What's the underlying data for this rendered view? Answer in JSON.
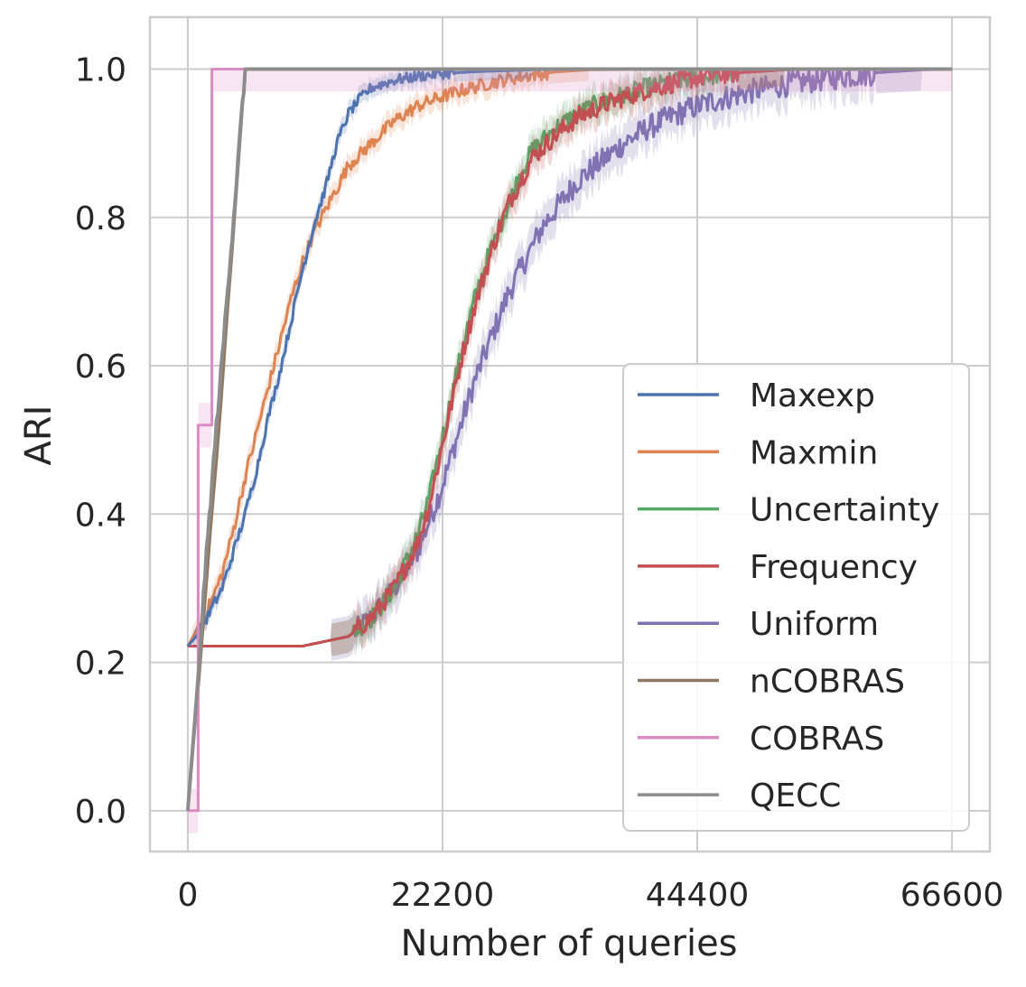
{
  "chart_data": {
    "type": "line",
    "title": "",
    "xlabel": "Number of queries",
    "ylabel": "ARI",
    "xlim": [
      -3300,
      69900
    ],
    "ylim": [
      -0.055,
      1.07
    ],
    "xticks": [
      0,
      22200,
      44400,
      66600
    ],
    "xtick_labels": [
      "0",
      "22200",
      "44400",
      "66600"
    ],
    "yticks": [
      0.0,
      0.2,
      0.4,
      0.6,
      0.8,
      1.0
    ],
    "ytick_labels": [
      "0.0",
      "0.2",
      "0.4",
      "0.6",
      "0.8",
      "1.0"
    ],
    "grid": true,
    "legend_position": "lower-right",
    "series": [
      {
        "name": "Maxexp",
        "color": "#4c72b0",
        "band": 0.012,
        "x": [
          0,
          1000,
          2000,
          3000,
          4000,
          5000,
          6000,
          7000,
          8000,
          9000,
          10000,
          11000,
          12000,
          13000,
          14000,
          15000,
          16000,
          18000,
          20000,
          22000,
          26000,
          30000,
          34000,
          40000,
          50000,
          66600
        ],
        "y": [
          0.222,
          0.24,
          0.27,
          0.3,
          0.35,
          0.4,
          0.46,
          0.53,
          0.59,
          0.66,
          0.73,
          0.79,
          0.84,
          0.9,
          0.94,
          0.96,
          0.975,
          0.985,
          0.99,
          0.994,
          0.997,
          0.999,
          1.0,
          1.0,
          1.0,
          1.0
        ]
      },
      {
        "name": "Maxmin",
        "color": "#dd8452",
        "band": 0.015,
        "x": [
          0,
          1000,
          2000,
          3000,
          4000,
          5000,
          6000,
          7000,
          8000,
          9000,
          10000,
          11000,
          12000,
          13000,
          14000,
          16000,
          18000,
          20000,
          22000,
          24000,
          26000,
          28000,
          30000,
          32000,
          35000,
          40000,
          50000,
          66600
        ],
        "y": [
          0.222,
          0.25,
          0.28,
          0.32,
          0.38,
          0.45,
          0.51,
          0.57,
          0.63,
          0.69,
          0.74,
          0.78,
          0.81,
          0.84,
          0.87,
          0.9,
          0.93,
          0.95,
          0.962,
          0.972,
          0.98,
          0.987,
          0.992,
          0.996,
          0.999,
          1.0,
          1.0,
          1.0
        ]
      },
      {
        "name": "Uncertainty",
        "color": "#55a868",
        "band": 0.022,
        "x": [
          0,
          10000,
          14000,
          16000,
          18000,
          20000,
          21000,
          22000,
          23000,
          24000,
          25000,
          26000,
          27000,
          28000,
          29000,
          30000,
          32000,
          34000,
          36000,
          38000,
          40000,
          42000,
          44000,
          46000,
          48000,
          50000,
          52000,
          56000,
          66600
        ],
        "y": [
          0.222,
          0.222,
          0.235,
          0.26,
          0.3,
          0.37,
          0.42,
          0.49,
          0.56,
          0.63,
          0.69,
          0.74,
          0.78,
          0.82,
          0.86,
          0.89,
          0.92,
          0.94,
          0.955,
          0.965,
          0.975,
          0.982,
          0.988,
          0.992,
          0.995,
          0.997,
          0.999,
          1.0,
          1.0
        ]
      },
      {
        "name": "Frequency",
        "color": "#c44e52",
        "band": 0.022,
        "x": [
          0,
          10000,
          14000,
          16000,
          18000,
          20000,
          21000,
          22000,
          23000,
          24000,
          25000,
          26000,
          27000,
          28000,
          29000,
          30000,
          32000,
          34000,
          36000,
          38000,
          40000,
          42000,
          44000,
          46000,
          48000,
          50000,
          52000,
          56000,
          66600
        ],
        "y": [
          0.222,
          0.222,
          0.235,
          0.26,
          0.3,
          0.36,
          0.41,
          0.48,
          0.55,
          0.62,
          0.68,
          0.73,
          0.78,
          0.82,
          0.85,
          0.88,
          0.91,
          0.935,
          0.95,
          0.962,
          0.972,
          0.98,
          0.987,
          0.992,
          0.995,
          0.997,
          0.999,
          1.0,
          1.0
        ]
      },
      {
        "name": "Uniform",
        "color": "#8172b3",
        "band": 0.028,
        "x": [
          0,
          10000,
          14000,
          16000,
          18000,
          20000,
          22000,
          23000,
          24000,
          25000,
          26000,
          27000,
          28000,
          29000,
          30000,
          31000,
          32000,
          34000,
          36000,
          38000,
          40000,
          42000,
          44000,
          46000,
          48000,
          50000,
          52000,
          54000,
          56000,
          58000,
          60000,
          62000,
          64000,
          66600
        ],
        "y": [
          0.222,
          0.222,
          0.235,
          0.26,
          0.3,
          0.35,
          0.43,
          0.48,
          0.53,
          0.58,
          0.62,
          0.66,
          0.7,
          0.73,
          0.76,
          0.79,
          0.81,
          0.85,
          0.875,
          0.9,
          0.92,
          0.935,
          0.948,
          0.958,
          0.966,
          0.973,
          0.979,
          0.984,
          0.988,
          0.992,
          0.995,
          0.997,
          0.999,
          1.0
        ]
      },
      {
        "name": "nCOBRAS",
        "color": "#937860",
        "band": 0,
        "x": [
          0,
          500,
          1000,
          1500,
          2000,
          2500,
          3000,
          3500,
          4000,
          4500,
          5000,
          66600
        ],
        "y": [
          0.0,
          0.09,
          0.18,
          0.28,
          0.38,
          0.47,
          0.57,
          0.68,
          0.78,
          0.89,
          1.0,
          1.0
        ]
      },
      {
        "name": "COBRAS",
        "color": "#da8bc3",
        "band": 0.03,
        "step": true,
        "x": [
          0,
          900,
          900,
          2100,
          2100,
          66600
        ],
        "y": [
          0.0,
          0.0,
          0.52,
          0.52,
          1.0,
          1.0
        ]
      },
      {
        "name": "QECC",
        "color": "#8c8c8c",
        "band": 0.015,
        "x": [
          0,
          500,
          1000,
          1500,
          2000,
          2500,
          3000,
          3500,
          4000,
          4500,
          5000,
          66600
        ],
        "y": [
          0.0,
          0.1,
          0.2,
          0.32,
          0.42,
          0.52,
          0.61,
          0.71,
          0.8,
          0.9,
          1.0,
          1.0
        ]
      }
    ]
  }
}
